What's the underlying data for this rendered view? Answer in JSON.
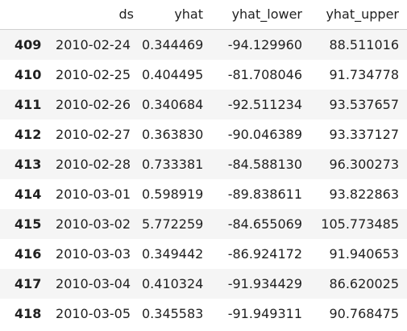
{
  "columns": [
    "ds",
    "yhat",
    "yhat_lower",
    "yhat_upper"
  ],
  "rows": [
    {
      "index": "409",
      "ds": "2010-02-24",
      "yhat": "0.344469",
      "yhat_lower": "-94.129960",
      "yhat_upper": "88.511016"
    },
    {
      "index": "410",
      "ds": "2010-02-25",
      "yhat": "0.404495",
      "yhat_lower": "-81.708046",
      "yhat_upper": "91.734778"
    },
    {
      "index": "411",
      "ds": "2010-02-26",
      "yhat": "0.340684",
      "yhat_lower": "-92.511234",
      "yhat_upper": "93.537657"
    },
    {
      "index": "412",
      "ds": "2010-02-27",
      "yhat": "0.363830",
      "yhat_lower": "-90.046389",
      "yhat_upper": "93.337127"
    },
    {
      "index": "413",
      "ds": "2010-02-28",
      "yhat": "0.733381",
      "yhat_lower": "-84.588130",
      "yhat_upper": "96.300273"
    },
    {
      "index": "414",
      "ds": "2010-03-01",
      "yhat": "0.598919",
      "yhat_lower": "-89.838611",
      "yhat_upper": "93.822863"
    },
    {
      "index": "415",
      "ds": "2010-03-02",
      "yhat": "5.772259",
      "yhat_lower": "-84.655069",
      "yhat_upper": "105.773485"
    },
    {
      "index": "416",
      "ds": "2010-03-03",
      "yhat": "0.349442",
      "yhat_lower": "-86.924172",
      "yhat_upper": "91.940653"
    },
    {
      "index": "417",
      "ds": "2010-03-04",
      "yhat": "0.410324",
      "yhat_lower": "-91.934429",
      "yhat_upper": "86.620025"
    },
    {
      "index": "418",
      "ds": "2010-03-05",
      "yhat": "0.345583",
      "yhat_lower": "-91.949311",
      "yhat_upper": "90.768475"
    }
  ]
}
